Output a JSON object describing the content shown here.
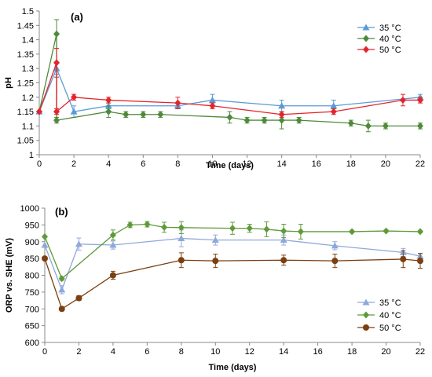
{
  "chart_data": [
    {
      "type": "line",
      "panel_label": "(a)",
      "xlabel": "Time (days)",
      "ylabel": "pH",
      "xlim": [
        0,
        22
      ],
      "ylim": [
        1,
        1.5
      ],
      "x_ticks": [
        0,
        2,
        4,
        6,
        8,
        10,
        12,
        14,
        16,
        18,
        20,
        22
      ],
      "y_ticks": [
        1,
        1.05,
        1.1,
        1.15,
        1.2,
        1.25,
        1.3,
        1.35,
        1.4,
        1.45,
        1.5
      ],
      "y_tick_labels": [
        "1",
        "1.05",
        "1.1",
        "1.15",
        "1.2",
        "1.25",
        "1.3",
        "1.35",
        "1.4",
        "1.45",
        "1.5"
      ],
      "grid": false,
      "legend_position": "top-right",
      "series": [
        {
          "name": "35 °C",
          "color": "#5b9bd5",
          "marker": "triangle",
          "points": [
            {
              "x": 0,
              "y": 1.15,
              "err": 0
            },
            {
              "x": 1,
              "y": 1.3,
              "err": 0.02
            },
            {
              "x": 2,
              "y": 1.15,
              "err": 0.02
            },
            {
              "x": 4,
              "y": 1.17,
              "err": 0.01
            },
            {
              "x": 8,
              "y": 1.17,
              "err": 0.01
            },
            {
              "x": 10,
              "y": 1.19,
              "err": 0.02
            },
            {
              "x": 14,
              "y": 1.17,
              "err": 0.02
            },
            {
              "x": 17,
              "y": 1.17,
              "err": 0.02
            },
            {
              "x": 22,
              "y": 1.2,
              "err": 0.01
            }
          ]
        },
        {
          "name": "40 °C",
          "color": "#4e8a3a",
          "marker": "diamond",
          "points": [
            {
              "x": 0,
              "y": 1.15,
              "err": 0
            },
            {
              "x": 1,
              "y": 1.42,
              "err": 0.05
            },
            {
              "x": 1,
              "y": 1.12,
              "err": 0.01
            },
            {
              "x": 4,
              "y": 1.15,
              "err": 0.02
            },
            {
              "x": 5,
              "y": 1.14,
              "err": 0.01
            },
            {
              "x": 6,
              "y": 1.14,
              "err": 0.01
            },
            {
              "x": 7,
              "y": 1.14,
              "err": 0.01
            },
            {
              "x": 11,
              "y": 1.13,
              "err": 0.02
            },
            {
              "x": 12,
              "y": 1.12,
              "err": 0.01
            },
            {
              "x": 13,
              "y": 1.12,
              "err": 0.01
            },
            {
              "x": 14,
              "y": 1.12,
              "err": 0.03
            },
            {
              "x": 15,
              "y": 1.12,
              "err": 0.01
            },
            {
              "x": 18,
              "y": 1.11,
              "err": 0.01
            },
            {
              "x": 19,
              "y": 1.1,
              "err": 0.02
            },
            {
              "x": 20,
              "y": 1.1,
              "err": 0.01
            },
            {
              "x": 22,
              "y": 1.1,
              "err": 0.01
            }
          ]
        },
        {
          "name": "50 °C",
          "color": "#e3242b",
          "marker": "diamond",
          "points": [
            {
              "x": 0,
              "y": 1.15,
              "err": 0
            },
            {
              "x": 1,
              "y": 1.32,
              "err": 0.05
            },
            {
              "x": 1,
              "y": 1.15,
              "err": 0.01
            },
            {
              "x": 2,
              "y": 1.2,
              "err": 0.01
            },
            {
              "x": 4,
              "y": 1.19,
              "err": 0.01
            },
            {
              "x": 8,
              "y": 1.18,
              "err": 0.02
            },
            {
              "x": 10,
              "y": 1.17,
              "err": 0.01
            },
            {
              "x": 14,
              "y": 1.14,
              "err": 0.01
            },
            {
              "x": 17,
              "y": 1.15,
              "err": 0.01
            },
            {
              "x": 21,
              "y": 1.19,
              "err": 0.02
            },
            {
              "x": 22,
              "y": 1.19,
              "err": 0.01
            }
          ]
        }
      ]
    },
    {
      "type": "line",
      "panel_label": "(b)",
      "xlabel": "Time (days)",
      "ylabel": "ORP vs. SHE (mV)",
      "xlim": [
        0,
        22
      ],
      "ylim": [
        600,
        1000
      ],
      "x_ticks": [
        0,
        2,
        4,
        6,
        8,
        10,
        12,
        14,
        16,
        18,
        20,
        22
      ],
      "y_ticks": [
        600,
        650,
        700,
        750,
        800,
        850,
        900,
        950,
        1000
      ],
      "y_tick_labels": [
        "600",
        "650",
        "700",
        "750",
        "800",
        "850",
        "900",
        "950",
        "1000"
      ],
      "grid": false,
      "legend_position": "bottom-right",
      "series": [
        {
          "name": "35 °C",
          "color": "#8fa8db",
          "marker": "triangle",
          "points": [
            {
              "x": 0,
              "y": 890,
              "err": 0
            },
            {
              "x": 1,
              "y": 757,
              "err": 12
            },
            {
              "x": 2,
              "y": 893,
              "err": 18
            },
            {
              "x": 4,
              "y": 890,
              "err": 12
            },
            {
              "x": 8,
              "y": 910,
              "err": 25
            },
            {
              "x": 10,
              "y": 905,
              "err": 15
            },
            {
              "x": 14,
              "y": 905,
              "err": 15
            },
            {
              "x": 17,
              "y": 888,
              "err": 12
            },
            {
              "x": 21,
              "y": 868,
              "err": 12
            },
            {
              "x": 22,
              "y": 857,
              "err": 8
            }
          ]
        },
        {
          "name": "40 °C",
          "color": "#5e9a3a",
          "marker": "diamond",
          "points": [
            {
              "x": 0,
              "y": 915,
              "err": 0
            },
            {
              "x": 1,
              "y": 790,
              "err": 5
            },
            {
              "x": 4,
              "y": 920,
              "err": 15
            },
            {
              "x": 5,
              "y": 950,
              "err": 8
            },
            {
              "x": 6,
              "y": 952,
              "err": 8
            },
            {
              "x": 7,
              "y": 943,
              "err": 15
            },
            {
              "x": 8,
              "y": 942,
              "err": 18
            },
            {
              "x": 11,
              "y": 940,
              "err": 18
            },
            {
              "x": 12,
              "y": 940,
              "err": 12
            },
            {
              "x": 13,
              "y": 937,
              "err": 22
            },
            {
              "x": 14,
              "y": 932,
              "err": 20
            },
            {
              "x": 15,
              "y": 930,
              "err": 22
            },
            {
              "x": 18,
              "y": 930,
              "err": 3
            },
            {
              "x": 20,
              "y": 932,
              "err": 3
            },
            {
              "x": 22,
              "y": 930,
              "err": 3
            }
          ]
        },
        {
          "name": "50 °C",
          "color": "#7b3f10",
          "marker": "circle",
          "points": [
            {
              "x": 0,
              "y": 850,
              "err": 0
            },
            {
              "x": 1,
              "y": 700,
              "err": 5
            },
            {
              "x": 2,
              "y": 732,
              "err": 7
            },
            {
              "x": 4,
              "y": 800,
              "err": 12
            },
            {
              "x": 8,
              "y": 845,
              "err": 22
            },
            {
              "x": 10,
              "y": 843,
              "err": 20
            },
            {
              "x": 14,
              "y": 845,
              "err": 15
            },
            {
              "x": 17,
              "y": 843,
              "err": 20
            },
            {
              "x": 21,
              "y": 848,
              "err": 25
            },
            {
              "x": 22,
              "y": 843,
              "err": 22
            }
          ]
        }
      ]
    }
  ]
}
